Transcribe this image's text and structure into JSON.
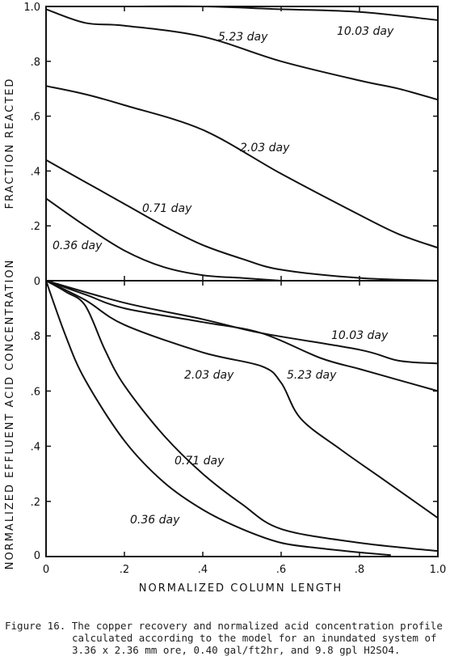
{
  "caption": {
    "line1": "Figure 16. The copper recovery and normalized acid concentration profile",
    "line2": "calculated according to the model for an inundated system of",
    "line3": "3.36 x 2.36 mm ore, 0.40 gal/ft2hr, and 9.8 gpl H2SO4."
  },
  "xlabel": "NORMALIZED COLUMN LENGTH",
  "chart_data": [
    {
      "type": "line",
      "ylabel": "FRACTION REACTED",
      "xlabel": "NORMALIZED COLUMN LENGTH",
      "xlim": [
        0,
        1.0
      ],
      "ylim": [
        0,
        1.0
      ],
      "x_ticks": [
        "0",
        ".2",
        ".4",
        ".6",
        ".8",
        "1.0"
      ],
      "y_ticks": [
        "0",
        ".2",
        ".4",
        ".6",
        ".8",
        "1.0"
      ],
      "series": [
        {
          "name": "10.03 day",
          "points": [
            [
              0.0,
              1.0
            ],
            [
              0.2,
              1.0
            ],
            [
              0.4,
              1.0
            ],
            [
              0.6,
              0.99
            ],
            [
              0.8,
              0.98
            ],
            [
              1.0,
              0.95
            ]
          ]
        },
        {
          "name": "5.23 day",
          "points": [
            [
              0.0,
              0.99
            ],
            [
              0.1,
              0.94
            ],
            [
              0.2,
              0.93
            ],
            [
              0.4,
              0.89
            ],
            [
              0.6,
              0.8
            ],
            [
              0.8,
              0.73
            ],
            [
              0.9,
              0.7
            ],
            [
              1.0,
              0.66
            ]
          ]
        },
        {
          "name": "2.03 day",
          "points": [
            [
              0.0,
              0.71
            ],
            [
              0.1,
              0.68
            ],
            [
              0.2,
              0.64
            ],
            [
              0.4,
              0.55
            ],
            [
              0.6,
              0.39
            ],
            [
              0.8,
              0.24
            ],
            [
              0.9,
              0.17
            ],
            [
              1.0,
              0.12
            ]
          ]
        },
        {
          "name": "0.71 day",
          "points": [
            [
              0.0,
              0.44
            ],
            [
              0.1,
              0.36
            ],
            [
              0.2,
              0.28
            ],
            [
              0.3,
              0.2
            ],
            [
              0.4,
              0.13
            ],
            [
              0.5,
              0.08
            ],
            [
              0.6,
              0.04
            ],
            [
              0.8,
              0.01
            ],
            [
              1.0,
              0.0
            ]
          ]
        },
        {
          "name": "0.36 day",
          "points": [
            [
              0.0,
              0.3
            ],
            [
              0.1,
              0.2
            ],
            [
              0.2,
              0.11
            ],
            [
              0.3,
              0.05
            ],
            [
              0.4,
              0.02
            ],
            [
              0.5,
              0.01
            ],
            [
              0.6,
              0.0
            ]
          ]
        }
      ]
    },
    {
      "type": "line",
      "ylabel": "NORMALIZED EFFLUENT ACID CONCENTRATION",
      "xlabel": "NORMALIZED COLUMN LENGTH",
      "xlim": [
        0,
        1.0
      ],
      "ylim": [
        0,
        1.0
      ],
      "x_ticks": [
        "0",
        ".2",
        ".4",
        ".6",
        ".8",
        "1.0"
      ],
      "y_ticks": [
        "0",
        ".2",
        ".4",
        ".6",
        ".8"
      ],
      "series": [
        {
          "name": "10.03 day",
          "points": [
            [
              0.0,
              1.0
            ],
            [
              0.2,
              0.92
            ],
            [
              0.4,
              0.86
            ],
            [
              0.55,
              0.81
            ],
            [
              0.8,
              0.75
            ],
            [
              0.9,
              0.71
            ],
            [
              1.0,
              0.7
            ]
          ]
        },
        {
          "name": "5.23 day",
          "points": [
            [
              0.0,
              1.0
            ],
            [
              0.1,
              0.95
            ],
            [
              0.2,
              0.9
            ],
            [
              0.4,
              0.85
            ],
            [
              0.55,
              0.81
            ],
            [
              0.7,
              0.72
            ],
            [
              0.8,
              0.68
            ],
            [
              0.9,
              0.64
            ],
            [
              1.0,
              0.6
            ]
          ]
        },
        {
          "name": "2.03 day",
          "points": [
            [
              0.0,
              1.0
            ],
            [
              0.1,
              0.93
            ],
            [
              0.2,
              0.84
            ],
            [
              0.4,
              0.74
            ],
            [
              0.55,
              0.69
            ],
            [
              0.6,
              0.63
            ],
            [
              0.65,
              0.5
            ],
            [
              0.75,
              0.39
            ],
            [
              0.85,
              0.29
            ],
            [
              1.0,
              0.14
            ]
          ]
        },
        {
          "name": "0.71 day",
          "points": [
            [
              0.0,
              1.0
            ],
            [
              0.05,
              0.96
            ],
            [
              0.1,
              0.91
            ],
            [
              0.15,
              0.75
            ],
            [
              0.2,
              0.62
            ],
            [
              0.3,
              0.44
            ],
            [
              0.4,
              0.3
            ],
            [
              0.5,
              0.19
            ],
            [
              0.6,
              0.1
            ],
            [
              0.8,
              0.05
            ],
            [
              1.0,
              0.02
            ]
          ]
        },
        {
          "name": "0.36 day",
          "points": [
            [
              0.0,
              1.0
            ],
            [
              0.05,
              0.8
            ],
            [
              0.1,
              0.64
            ],
            [
              0.2,
              0.42
            ],
            [
              0.3,
              0.27
            ],
            [
              0.4,
              0.17
            ],
            [
              0.5,
              0.1
            ],
            [
              0.6,
              0.05
            ],
            [
              0.7,
              0.03
            ],
            [
              0.8,
              0.015
            ],
            [
              0.88,
              0.005
            ]
          ]
        }
      ]
    }
  ]
}
